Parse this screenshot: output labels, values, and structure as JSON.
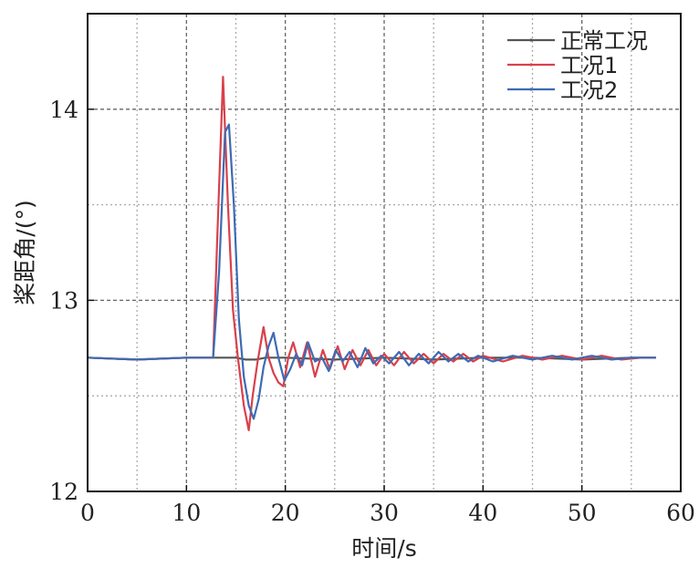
{
  "chart_data": {
    "type": "line",
    "title": "",
    "xlabel": "时间/s",
    "ylabel": "桨距角/(°)",
    "xlim": [
      0,
      60
    ],
    "ylim": [
      12,
      14.5
    ],
    "x_ticks": [
      0,
      10,
      20,
      30,
      40,
      50,
      60
    ],
    "y_ticks": [
      12,
      13,
      14
    ],
    "x_tick_labels": [
      "0",
      "10",
      "20",
      "30",
      "40",
      "50",
      "60"
    ],
    "y_tick_labels": [
      "12",
      "13",
      "14"
    ],
    "grid": true,
    "legend_position": "top-right",
    "series": [
      {
        "name": "正常工况",
        "color": "#555555",
        "x": [
          0,
          5,
          10,
          12,
          13,
          14,
          15,
          16,
          17,
          18,
          20,
          25,
          30,
          35,
          40,
          45,
          50,
          55,
          57.5
        ],
        "y": [
          12.7,
          12.69,
          12.7,
          12.7,
          12.7,
          12.7,
          12.7,
          12.69,
          12.69,
          12.7,
          12.7,
          12.69,
          12.7,
          12.69,
          12.7,
          12.7,
          12.69,
          12.7,
          12.7
        ]
      },
      {
        "name": "工况1",
        "color": "#d9404a",
        "x": [
          0,
          5,
          10,
          12.7,
          13.1,
          13.7,
          14.2,
          14.7,
          15.2,
          15.8,
          16.3,
          16.7,
          17.2,
          17.8,
          18.3,
          18.8,
          19.3,
          19.8,
          20.3,
          20.8,
          21.5,
          22.2,
          23,
          23.8,
          24.5,
          25.3,
          26,
          26.8,
          27.6,
          28.4,
          29.2,
          30,
          31,
          32,
          33,
          34,
          35,
          36,
          37,
          38,
          39,
          40,
          42,
          44,
          46,
          48,
          50,
          52,
          54,
          56,
          57.5
        ],
        "y": [
          12.7,
          12.69,
          12.7,
          12.7,
          13.3,
          14.17,
          13.5,
          12.95,
          12.7,
          12.45,
          12.32,
          12.5,
          12.68,
          12.86,
          12.7,
          12.62,
          12.57,
          12.55,
          12.7,
          12.78,
          12.65,
          12.78,
          12.6,
          12.74,
          12.64,
          12.76,
          12.64,
          12.74,
          12.66,
          12.74,
          12.66,
          12.72,
          12.66,
          12.73,
          12.67,
          12.72,
          12.67,
          12.72,
          12.68,
          12.72,
          12.68,
          12.71,
          12.68,
          12.71,
          12.69,
          12.71,
          12.69,
          12.71,
          12.69,
          12.7,
          12.7
        ]
      },
      {
        "name": "工况2",
        "color": "#3d6bb3",
        "x": [
          0,
          5,
          10,
          12.7,
          13.3,
          13.9,
          14.3,
          14.8,
          15.3,
          15.8,
          16.3,
          16.8,
          17.3,
          17.8,
          18.3,
          18.8,
          19.3,
          19.9,
          20.5,
          21.1,
          21.7,
          22.3,
          23,
          23.7,
          24.4,
          25.1,
          25.8,
          26.5,
          27.3,
          28.1,
          28.9,
          29.7,
          30.5,
          31.5,
          32.5,
          33.5,
          34.5,
          35.5,
          36.5,
          37.5,
          38.5,
          39.5,
          41,
          43,
          45,
          47,
          49,
          51,
          53,
          55,
          57.5
        ],
        "y": [
          12.7,
          12.69,
          12.7,
          12.7,
          13.15,
          13.88,
          13.92,
          13.5,
          12.9,
          12.6,
          12.45,
          12.38,
          12.48,
          12.65,
          12.76,
          12.83,
          12.7,
          12.58,
          12.64,
          12.72,
          12.66,
          12.78,
          12.68,
          12.7,
          12.63,
          12.74,
          12.68,
          12.73,
          12.65,
          12.75,
          12.67,
          12.71,
          12.67,
          12.73,
          12.66,
          12.72,
          12.67,
          12.73,
          12.68,
          12.72,
          12.68,
          12.71,
          12.68,
          12.71,
          12.69,
          12.71,
          12.69,
          12.71,
          12.69,
          12.7,
          12.7
        ]
      }
    ]
  }
}
